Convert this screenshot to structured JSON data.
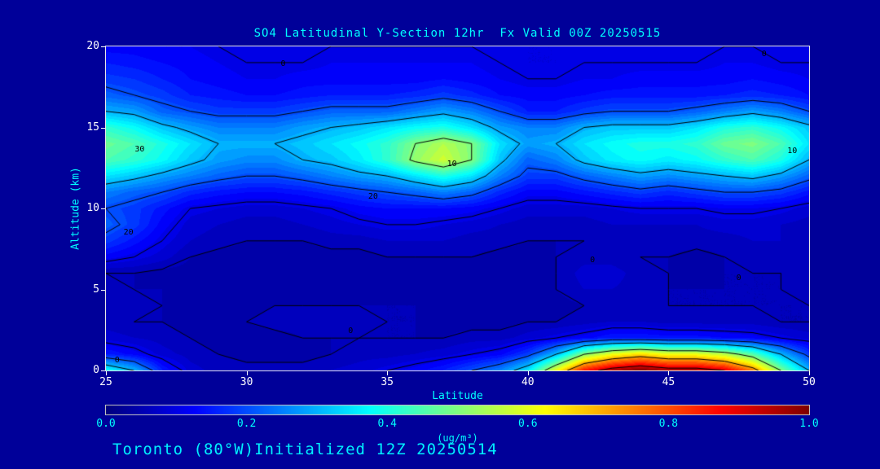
{
  "footer": "Toronto (80°W)Initialized 12Z 20250514",
  "colors": {
    "background": "#000099",
    "title_text": "#00ffff",
    "axis_title_text": "#00ffff",
    "tick_label_text": "#ffffff",
    "contour_line": "#000000"
  },
  "chart_data": {
    "type": "heatmap",
    "title": "SO4 Latitudinal Y-Section 12hr  Fx Valid 00Z 20250515",
    "xlabel": "Latitude",
    "ylabel": "Altitude (km)",
    "units": "(ug/m³)",
    "colormap": "jet",
    "grid": false,
    "xlim": [
      25,
      50
    ],
    "ylim": [
      0,
      20
    ],
    "zlim": [
      0,
      1
    ],
    "x_ticks": [
      25,
      30,
      35,
      40,
      45,
      50
    ],
    "y_ticks": [
      0,
      5,
      10,
      15,
      20
    ],
    "colorbar_ticks": [
      "0.0",
      "0.2",
      "0.4",
      "0.6",
      "0.8",
      "1.0"
    ],
    "x": [
      25,
      26,
      27,
      28,
      29,
      30,
      31,
      32,
      33,
      34,
      35,
      36,
      37,
      38,
      39,
      40,
      41,
      42,
      43,
      44,
      45,
      46,
      47,
      48,
      49,
      50
    ],
    "y": [
      0,
      1,
      2,
      3,
      4,
      5,
      6,
      7,
      8,
      9,
      10,
      11,
      12,
      13,
      14,
      15,
      16,
      17,
      18,
      19,
      20
    ],
    "values": [
      [
        0.38,
        0.3,
        0.15,
        0.08,
        0.06,
        0.06,
        0.06,
        0.06,
        0.07,
        0.08,
        0.1,
        0.12,
        0.15,
        0.2,
        0.25,
        0.35,
        0.6,
        0.85,
        0.95,
        1.0,
        0.95,
        0.95,
        0.9,
        0.75,
        0.5,
        0.3
      ],
      [
        0.15,
        0.12,
        0.08,
        0.06,
        0.05,
        0.04,
        0.04,
        0.04,
        0.05,
        0.06,
        0.06,
        0.07,
        0.08,
        0.1,
        0.12,
        0.18,
        0.3,
        0.5,
        0.6,
        0.65,
        0.6,
        0.6,
        0.55,
        0.45,
        0.3,
        0.18
      ],
      [
        0.08,
        0.07,
        0.06,
        0.05,
        0.04,
        0.04,
        0.04,
        0.05,
        0.05,
        0.05,
        0.05,
        0.05,
        0.05,
        0.06,
        0.06,
        0.08,
        0.1,
        0.12,
        0.15,
        0.15,
        0.14,
        0.14,
        0.13,
        0.12,
        0.1,
        0.08
      ],
      [
        0.06,
        0.05,
        0.05,
        0.04,
        0.04,
        0.05,
        0.06,
        0.06,
        0.06,
        0.06,
        0.05,
        0.05,
        0.04,
        0.04,
        0.04,
        0.05,
        0.05,
        0.06,
        0.07,
        0.07,
        0.06,
        0.06,
        0.06,
        0.06,
        0.05,
        0.05
      ],
      [
        0.06,
        0.06,
        0.05,
        0.04,
        0.04,
        0.04,
        0.05,
        0.05,
        0.05,
        0.05,
        0.05,
        0.05,
        0.04,
        0.04,
        0.04,
        0.04,
        0.04,
        0.05,
        0.06,
        0.06,
        0.05,
        0.05,
        0.05,
        0.05,
        0.05,
        0.05
      ],
      [
        0.06,
        0.05,
        0.05,
        0.04,
        0.04,
        0.04,
        0.04,
        0.04,
        0.04,
        0.04,
        0.04,
        0.04,
        0.04,
        0.04,
        0.04,
        0.04,
        0.05,
        0.07,
        0.07,
        0.06,
        0.05,
        0.05,
        0.05,
        0.05,
        0.05,
        0.06
      ],
      [
        0.05,
        0.05,
        0.04,
        0.04,
        0.04,
        0.04,
        0.04,
        0.04,
        0.04,
        0.04,
        0.04,
        0.04,
        0.04,
        0.04,
        0.04,
        0.04,
        0.05,
        0.08,
        0.08,
        0.06,
        0.05,
        0.04,
        0.05,
        0.05,
        0.05,
        0.06
      ],
      [
        0.12,
        0.1,
        0.08,
        0.05,
        0.04,
        0.04,
        0.04,
        0.04,
        0.04,
        0.04,
        0.05,
        0.05,
        0.05,
        0.05,
        0.04,
        0.04,
        0.05,
        0.06,
        0.06,
        0.05,
        0.05,
        0.04,
        0.05,
        0.06,
        0.06,
        0.06
      ],
      [
        0.18,
        0.14,
        0.1,
        0.07,
        0.06,
        0.05,
        0.05,
        0.05,
        0.06,
        0.06,
        0.07,
        0.07,
        0.07,
        0.06,
        0.06,
        0.05,
        0.05,
        0.05,
        0.06,
        0.06,
        0.06,
        0.06,
        0.06,
        0.07,
        0.07,
        0.06
      ],
      [
        0.22,
        0.18,
        0.12,
        0.08,
        0.07,
        0.06,
        0.06,
        0.07,
        0.08,
        0.09,
        0.1,
        0.1,
        0.09,
        0.08,
        0.07,
        0.06,
        0.06,
        0.06,
        0.07,
        0.07,
        0.07,
        0.07,
        0.08,
        0.08,
        0.07,
        0.06
      ],
      [
        0.2,
        0.18,
        0.14,
        0.1,
        0.09,
        0.08,
        0.08,
        0.09,
        0.1,
        0.12,
        0.13,
        0.13,
        0.13,
        0.12,
        0.1,
        0.08,
        0.08,
        0.08,
        0.09,
        0.1,
        0.1,
        0.1,
        0.11,
        0.11,
        0.1,
        0.08
      ],
      [
        0.25,
        0.22,
        0.2,
        0.16,
        0.14,
        0.13,
        0.13,
        0.14,
        0.16,
        0.18,
        0.2,
        0.22,
        0.25,
        0.22,
        0.16,
        0.12,
        0.12,
        0.14,
        0.16,
        0.18,
        0.16,
        0.18,
        0.2,
        0.2,
        0.18,
        0.14
      ],
      [
        0.35,
        0.32,
        0.28,
        0.25,
        0.22,
        0.2,
        0.2,
        0.22,
        0.25,
        0.28,
        0.3,
        0.35,
        0.4,
        0.35,
        0.25,
        0.18,
        0.18,
        0.22,
        0.25,
        0.28,
        0.26,
        0.28,
        0.3,
        0.32,
        0.28,
        0.22
      ],
      [
        0.45,
        0.42,
        0.38,
        0.32,
        0.28,
        0.26,
        0.26,
        0.3,
        0.32,
        0.36,
        0.42,
        0.52,
        0.58,
        0.5,
        0.32,
        0.22,
        0.25,
        0.32,
        0.36,
        0.38,
        0.36,
        0.38,
        0.42,
        0.45,
        0.4,
        0.3
      ],
      [
        0.48,
        0.45,
        0.4,
        0.35,
        0.3,
        0.3,
        0.3,
        0.32,
        0.35,
        0.38,
        0.42,
        0.5,
        0.55,
        0.5,
        0.35,
        0.28,
        0.3,
        0.35,
        0.38,
        0.4,
        0.4,
        0.42,
        0.48,
        0.5,
        0.45,
        0.35
      ],
      [
        0.42,
        0.38,
        0.32,
        0.28,
        0.25,
        0.25,
        0.25,
        0.28,
        0.3,
        0.32,
        0.35,
        0.38,
        0.4,
        0.35,
        0.28,
        0.25,
        0.25,
        0.3,
        0.32,
        0.32,
        0.32,
        0.35,
        0.4,
        0.42,
        0.38,
        0.32
      ],
      [
        0.3,
        0.28,
        0.22,
        0.2,
        0.18,
        0.18,
        0.18,
        0.2,
        0.22,
        0.22,
        0.22,
        0.25,
        0.28,
        0.25,
        0.2,
        0.15,
        0.15,
        0.18,
        0.2,
        0.2,
        0.2,
        0.22,
        0.25,
        0.28,
        0.25,
        0.2
      ],
      [
        0.22,
        0.2,
        0.18,
        0.15,
        0.14,
        0.13,
        0.13,
        0.14,
        0.15,
        0.15,
        0.15,
        0.16,
        0.18,
        0.16,
        0.13,
        0.12,
        0.12,
        0.13,
        0.14,
        0.14,
        0.14,
        0.14,
        0.15,
        0.16,
        0.15,
        0.13
      ],
      [
        0.18,
        0.17,
        0.15,
        0.13,
        0.12,
        0.11,
        0.11,
        0.12,
        0.12,
        0.12,
        0.12,
        0.12,
        0.13,
        0.12,
        0.11,
        0.1,
        0.1,
        0.11,
        0.11,
        0.12,
        0.12,
        0.12,
        0.12,
        0.13,
        0.12,
        0.11
      ],
      [
        0.15,
        0.14,
        0.13,
        0.12,
        0.11,
        0.1,
        0.1,
        0.1,
        0.11,
        0.11,
        0.11,
        0.11,
        0.11,
        0.11,
        0.1,
        0.09,
        0.09,
        0.1,
        0.1,
        0.1,
        0.1,
        0.1,
        0.11,
        0.11,
        0.1,
        0.1
      ],
      [
        0.12,
        0.12,
        0.11,
        0.11,
        0.1,
        0.1,
        0.09,
        0.09,
        0.1,
        0.1,
        0.1,
        0.1,
        0.1,
        0.1,
        0.09,
        0.09,
        0.09,
        0.09,
        0.09,
        0.1,
        0.1,
        0.1,
        0.1,
        0.1,
        0.09,
        0.09
      ]
    ],
    "contour_levels": [
      0.05,
      0.1,
      0.2,
      0.3,
      0.5,
      0.7,
      0.9
    ],
    "contour_line_labels": [
      {
        "text": "0",
        "lat": 31.3,
        "alt": 18.9
      },
      {
        "text": "0",
        "lat": 48.4,
        "alt": 19.5
      },
      {
        "text": "30",
        "lat": 26.2,
        "alt": 13.6
      },
      {
        "text": "10",
        "lat": 37.3,
        "alt": 12.7
      },
      {
        "text": "20",
        "lat": 34.5,
        "alt": 10.7
      },
      {
        "text": "20",
        "lat": 25.8,
        "alt": 8.5
      },
      {
        "text": "10",
        "lat": 49.4,
        "alt": 13.5
      },
      {
        "text": "0",
        "lat": 47.5,
        "alt": 5.7
      },
      {
        "text": "0",
        "lat": 42.3,
        "alt": 6.8
      },
      {
        "text": "0",
        "lat": 33.7,
        "alt": 2.4
      },
      {
        "text": "0",
        "lat": 25.4,
        "alt": 0.6
      }
    ]
  }
}
